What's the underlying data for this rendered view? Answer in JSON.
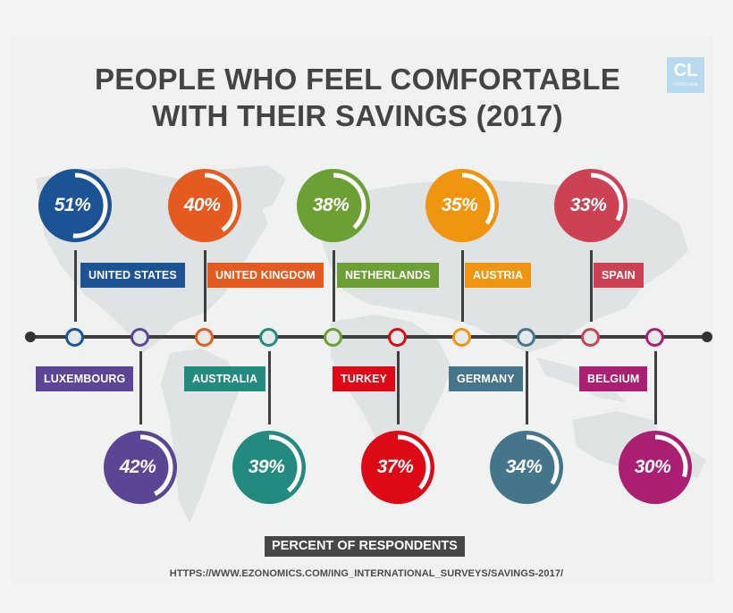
{
  "title_lines": [
    "PEOPLE WHO FEEL COMFORTABLE",
    "WITH THEIR SAVINGS (2017)"
  ],
  "logo": {
    "mark": "CL",
    "sub": "CREDITLOAN",
    "color": "#b9d9ee"
  },
  "footer": {
    "badge": "PERCENT OF RESPONDENTS",
    "source": "HTTPS://WWW.EZONOMICS.COM/ING_INTERNATIONAL_SURVEYS/SAVINGS-2017/"
  },
  "countries": [
    {
      "name": "UNITED STATES",
      "value_label": "51%",
      "value": 51,
      "position": "top",
      "color": "#1b5394"
    },
    {
      "name": "LUXEMBOURG",
      "value_label": "42%",
      "value": 42,
      "position": "bottom",
      "color": "#5c4595"
    },
    {
      "name": "UNITED KINGDOM",
      "value_label": "40%",
      "value": 40,
      "position": "top",
      "color": "#e55a1f"
    },
    {
      "name": "AUSTRALIA",
      "value_label": "39%",
      "value": 39,
      "position": "bottom",
      "color": "#238a80"
    },
    {
      "name": "NETHERLANDS",
      "value_label": "38%",
      "value": 38,
      "position": "top",
      "color": "#6c9f34"
    },
    {
      "name": "TURKEY",
      "value_label": "37%",
      "value": 37,
      "position": "bottom",
      "color": "#de0917"
    },
    {
      "name": "AUSTRIA",
      "value_label": "35%",
      "value": 35,
      "position": "top",
      "color": "#f0950f"
    },
    {
      "name": "GERMANY",
      "value_label": "34%",
      "value": 34,
      "position": "bottom",
      "color": "#44758a"
    },
    {
      "name": "SPAIN",
      "value_label": "33%",
      "value": 33,
      "position": "top",
      "color": "#cc4254"
    },
    {
      "name": "BELGIUM",
      "value_label": "30%",
      "value": 30,
      "position": "bottom",
      "color": "#ab1f72"
    }
  ],
  "chart_data": {
    "type": "bar",
    "title": "PEOPLE WHO FEEL COMFORTABLE WITH THEIR SAVINGS (2017)",
    "categories": [
      "United States",
      "Luxembourg",
      "United Kingdom",
      "Australia",
      "Netherlands",
      "Turkey",
      "Austria",
      "Germany",
      "Spain",
      "Belgium"
    ],
    "values": [
      51,
      42,
      40,
      39,
      38,
      37,
      35,
      34,
      33,
      30
    ],
    "unit": "%",
    "xlabel": "",
    "ylabel": "PERCENT OF RESPONDENTS",
    "ylim": [
      0,
      100
    ],
    "grid": false,
    "legend": "none",
    "source": "HTTPS://WWW.EZONOMICS.COM/ING_INTERNATIONAL_SURVEYS/SAVINGS-2017/"
  }
}
